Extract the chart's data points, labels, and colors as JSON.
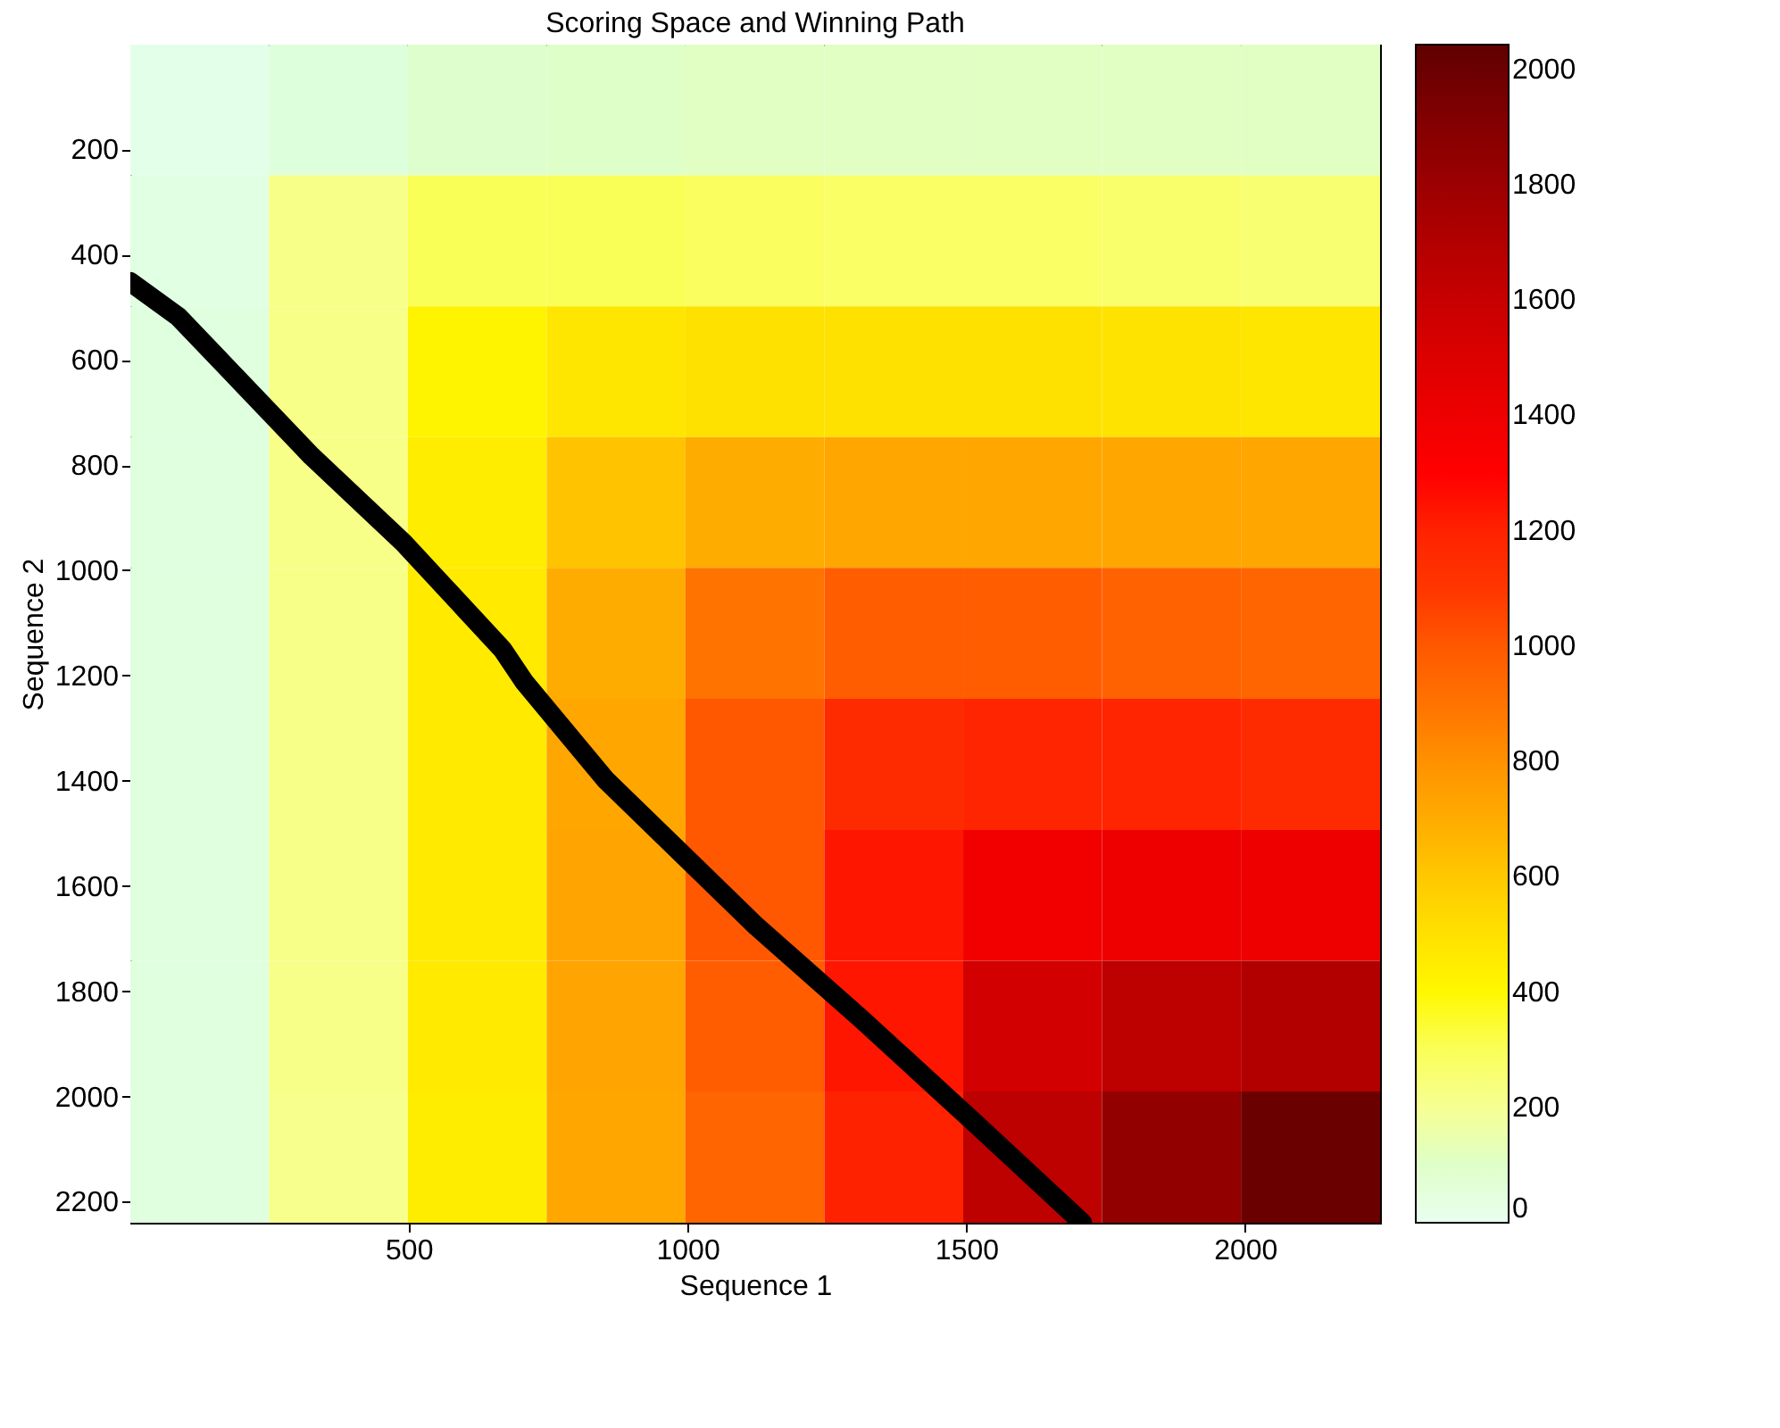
{
  "chart_data": {
    "type": "heatmap",
    "title": "Scoring Space and Winning Path",
    "xlabel": "Sequence 1",
    "ylabel": "Sequence 2",
    "x": [
      125,
      374,
      623,
      872,
      1121,
      1370,
      1619,
      1868,
      2117
    ],
    "y": [
      125,
      374,
      623,
      871,
      1120,
      1369,
      1618,
      1866,
      2115
    ],
    "cells": [
      [
        20,
        60,
        90,
        100,
        110,
        110,
        110,
        110,
        110
      ],
      [
        40,
        220,
        300,
        300,
        290,
        280,
        280,
        270,
        260
      ],
      [
        50,
        220,
        420,
        480,
        500,
        500,
        500,
        490,
        480
      ],
      [
        50,
        220,
        450,
        620,
        700,
        720,
        720,
        720,
        720
      ],
      [
        50,
        220,
        460,
        700,
        900,
        980,
        980,
        960,
        950
      ],
      [
        50,
        220,
        460,
        720,
        1000,
        1150,
        1180,
        1180,
        1150
      ],
      [
        50,
        220,
        460,
        730,
        1000,
        1250,
        1380,
        1400,
        1400
      ],
      [
        50,
        220,
        460,
        730,
        980,
        1250,
        1550,
        1650,
        1700
      ],
      [
        50,
        210,
        450,
        720,
        950,
        1200,
        1650,
        1850,
        2000
      ]
    ],
    "clim": [
      0,
      2043
    ],
    "cticks": [
      0,
      200,
      400,
      600,
      800,
      1000,
      1200,
      1400,
      1600,
      1800,
      2000
    ],
    "xlim": [
      1,
      2242
    ],
    "xticks": [
      500,
      1000,
      1500,
      2000
    ],
    "ylim": [
      2240,
      1
    ],
    "yticks": [
      200,
      400,
      600,
      800,
      1000,
      1200,
      1400,
      1600,
      1800,
      2000,
      2200
    ],
    "series": [
      {
        "type": "line",
        "color": "#000000",
        "x": [
          1,
          87,
          326,
          491,
          668,
          708,
          854,
          1124,
          1311,
          1516,
          1708
        ],
        "values": [
          452,
          518,
          783,
          948,
          1150,
          1213,
          1399,
          1677,
          1852,
          2051,
          2240
        ]
      }
    ]
  }
}
